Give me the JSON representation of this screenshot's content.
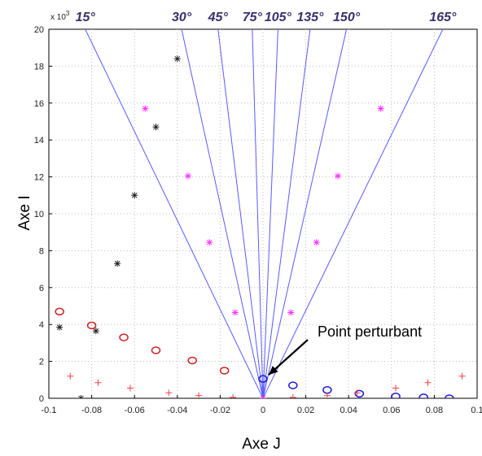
{
  "chart_data": {
    "type": "scatter",
    "title": "",
    "xlabel": "Axe J",
    "ylabel": "Axe I",
    "y_exponent_label": "x 10",
    "y_exponent_power": "3",
    "xlim": [
      -0.1,
      0.1
    ],
    "ylim": [
      0,
      20000
    ],
    "grid": true,
    "x_ticks": [
      -0.1,
      -0.08,
      -0.06,
      -0.04,
      -0.02,
      0,
      0.02,
      0.04,
      0.06,
      0.08,
      0.1
    ],
    "x_tick_labels": [
      "-0.1",
      "-0.08",
      "-0.06",
      "-0.04",
      "-0.02",
      "0",
      "0.02",
      "0.04",
      "0.06",
      "0.08",
      "0.1"
    ],
    "y_ticks": [
      0,
      2000,
      4000,
      6000,
      8000,
      10000,
      12000,
      14000,
      16000,
      18000,
      20000
    ],
    "y_tick_labels": [
      "0",
      "2",
      "4",
      "6",
      "8",
      "10",
      "12",
      "14",
      "16",
      "18",
      "20"
    ],
    "lines_color": "#5a5aff",
    "lines_origin": [
      0,
      0
    ],
    "lines": [
      {
        "label": "15°",
        "end": [
          -0.083,
          20000
        ]
      },
      {
        "label": "30°",
        "end": [
          -0.038,
          20000
        ]
      },
      {
        "label": "45°",
        "end": [
          -0.021,
          20000
        ]
      },
      {
        "label": "75°",
        "end": [
          -0.005,
          20000
        ]
      },
      {
        "label": "105°",
        "end": [
          0.007,
          20000
        ]
      },
      {
        "label": "135°",
        "end": [
          0.022,
          20000
        ]
      },
      {
        "label": "150°",
        "end": [
          0.039,
          20000
        ]
      },
      {
        "label": "165°",
        "end": [
          0.084,
          20000
        ]
      }
    ],
    "series": [
      {
        "marker": "star",
        "color": "#222222",
        "points": [
          [
            -0.095,
            3850
          ],
          [
            -0.078,
            3650
          ],
          [
            -0.068,
            7300
          ],
          [
            -0.06,
            11000
          ],
          [
            -0.05,
            14700
          ],
          [
            -0.04,
            18400
          ],
          [
            -0.085,
            0
          ]
        ]
      },
      {
        "marker": "star",
        "color": "#ff33ff",
        "points": [
          [
            -0.055,
            15700
          ],
          [
            -0.035,
            12050
          ],
          [
            -0.025,
            8450
          ],
          [
            -0.013,
            4650
          ],
          [
            0.013,
            4650
          ],
          [
            0.025,
            8450
          ],
          [
            0.035,
            12050
          ],
          [
            0.055,
            15700
          ],
          [
            0,
            0
          ]
        ]
      },
      {
        "marker": "circle",
        "color": "#cc2222",
        "points": [
          [
            -0.095,
            4700
          ],
          [
            -0.08,
            3950
          ],
          [
            -0.065,
            3300
          ],
          [
            -0.05,
            2600
          ],
          [
            -0.033,
            2050
          ],
          [
            -0.018,
            1500
          ]
        ]
      },
      {
        "marker": "circle",
        "color": "#1a1adb",
        "points": [
          [
            0,
            1050
          ],
          [
            0.014,
            700
          ],
          [
            0.03,
            450
          ],
          [
            0.045,
            250
          ],
          [
            0.062,
            100
          ],
          [
            0.075,
            50
          ],
          [
            0.087,
            0
          ]
        ]
      },
      {
        "marker": "plus",
        "color": "#ee4444",
        "points": [
          [
            -0.09,
            1200
          ],
          [
            -0.077,
            850
          ],
          [
            -0.062,
            550
          ],
          [
            -0.044,
            300
          ],
          [
            -0.03,
            150
          ],
          [
            -0.014,
            50
          ],
          [
            0.014,
            50
          ],
          [
            0.03,
            150
          ],
          [
            0.044,
            300
          ],
          [
            0.062,
            550
          ],
          [
            0.077,
            850
          ],
          [
            0.093,
            1200
          ]
        ]
      }
    ],
    "annotations": [
      {
        "text": "Point perturbant",
        "target": [
          0,
          1050
        ]
      }
    ]
  }
}
